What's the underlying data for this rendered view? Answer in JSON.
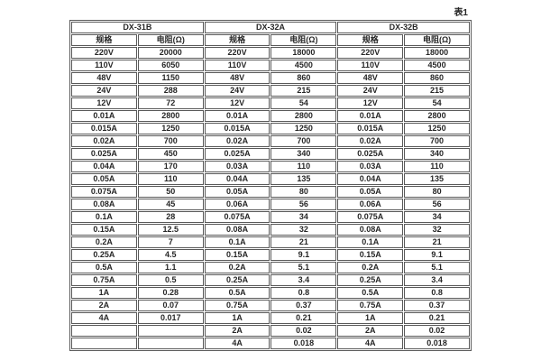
{
  "page": {
    "caption": "表1"
  },
  "colors": {
    "border": "#595959",
    "text": "#262626",
    "background": "#ffffff"
  },
  "table": {
    "groups": [
      {
        "name": "DX-31B",
        "spec_header": "规格",
        "resistance_header": "电阻(Ω)"
      },
      {
        "name": "DX-32A",
        "spec_header": "规格",
        "resistance_header": "电阻(Ω)"
      },
      {
        "name": "DX-32B",
        "spec_header": "规格",
        "resistance_header": "电阻(Ω)"
      }
    ],
    "rows": [
      [
        "220V",
        "20000",
        "220V",
        "18000",
        "220V",
        "18000"
      ],
      [
        "110V",
        "6050",
        "110V",
        "4500",
        "110V",
        "4500"
      ],
      [
        "48V",
        "1150",
        "48V",
        "860",
        "48V",
        "860"
      ],
      [
        "24V",
        "288",
        "24V",
        "215",
        "24V",
        "215"
      ],
      [
        "12V",
        "72",
        "12V",
        "54",
        "12V",
        "54"
      ],
      [
        "0.01A",
        "2800",
        "0.01A",
        "2800",
        "0.01A",
        "2800"
      ],
      [
        "0.015A",
        "1250",
        "0.015A",
        "1250",
        "0.015A",
        "1250"
      ],
      [
        "0.02A",
        "700",
        "0.02A",
        "700",
        "0.02A",
        "700"
      ],
      [
        "0.025A",
        "450",
        "0.025A",
        "340",
        "0.025A",
        "340"
      ],
      [
        "0.04A",
        "170",
        "0.03A",
        "110",
        "0.03A",
        "110"
      ],
      [
        "0.05A",
        "110",
        "0.04A",
        "135",
        "0.04A",
        "135"
      ],
      [
        "0.075A",
        "50",
        "0.05A",
        "80",
        "0.05A",
        "80"
      ],
      [
        "0.08A",
        "45",
        "0.06A",
        "56",
        "0.06A",
        "56"
      ],
      [
        "0.1A",
        "28",
        "0.075A",
        "34",
        "0.075A",
        "34"
      ],
      [
        "0.15A",
        "12.5",
        "0.08A",
        "32",
        "0.08A",
        "32"
      ],
      [
        "0.2A",
        "7",
        "0.1A",
        "21",
        "0.1A",
        "21"
      ],
      [
        "0.25A",
        "4.5",
        "0.15A",
        "9.1",
        "0.15A",
        "9.1"
      ],
      [
        "0.5A",
        "1.1",
        "0.2A",
        "5.1",
        "0.2A",
        "5.1"
      ],
      [
        "0.75A",
        "0.5",
        "0.25A",
        "3.4",
        "0.25A",
        "3.4"
      ],
      [
        "1A",
        "0.28",
        "0.5A",
        "0.8",
        "0.5A",
        "0.8"
      ],
      [
        "2A",
        "0.07",
        "0.75A",
        "0.37",
        "0.75A",
        "0.37"
      ],
      [
        "4A",
        "0.017",
        "1A",
        "0.21",
        "1A",
        "0.21"
      ],
      [
        "",
        "",
        "2A",
        "0.02",
        "2A",
        "0.02"
      ],
      [
        "",
        "",
        "4A",
        "0.018",
        "4A",
        "0.018"
      ]
    ]
  }
}
